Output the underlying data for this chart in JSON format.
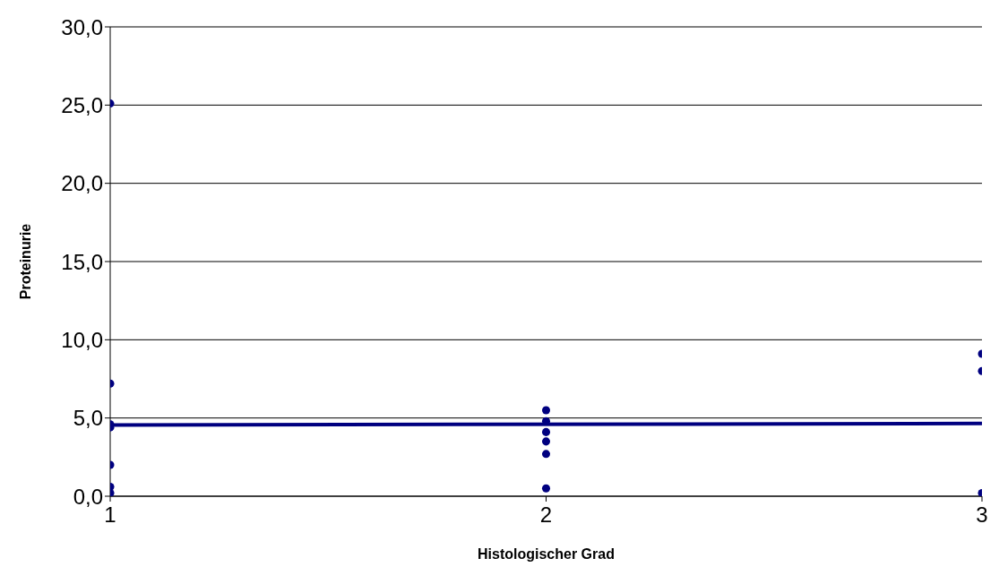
{
  "chart_data": {
    "type": "scatter",
    "xlabel": "Histologischer Grad",
    "ylabel": "Proteinurie",
    "xlim": [
      1,
      3
    ],
    "xticks": [
      1,
      2,
      3
    ],
    "ylim": [
      0,
      30
    ],
    "yticks": [
      {
        "value": 0,
        "label": "0,0"
      },
      {
        "value": 5,
        "label": "5,0"
      },
      {
        "value": 10,
        "label": "10,0"
      },
      {
        "value": 15,
        "label": "15,0"
      },
      {
        "value": 20,
        "label": "20,0"
      },
      {
        "value": 25,
        "label": "25,0"
      },
      {
        "value": 30,
        "label": "30,0"
      }
    ],
    "grid": "y",
    "series": [
      {
        "marker": "circle",
        "color": "#000080",
        "x": [
          1,
          1,
          1,
          1,
          1,
          1,
          1,
          2,
          2,
          2,
          2,
          2,
          2,
          3,
          3,
          3
        ],
        "values": [
          25.1,
          7.2,
          4.6,
          4.4,
          2.0,
          0.6,
          0.2,
          5.5,
          4.8,
          4.1,
          3.5,
          2.7,
          0.5,
          9.1,
          8.0,
          0.2
        ]
      },
      {
        "type": "line",
        "marker": "none",
        "color": "#000080",
        "x": [
          1,
          3
        ],
        "values": [
          4.55,
          4.65
        ]
      }
    ]
  }
}
